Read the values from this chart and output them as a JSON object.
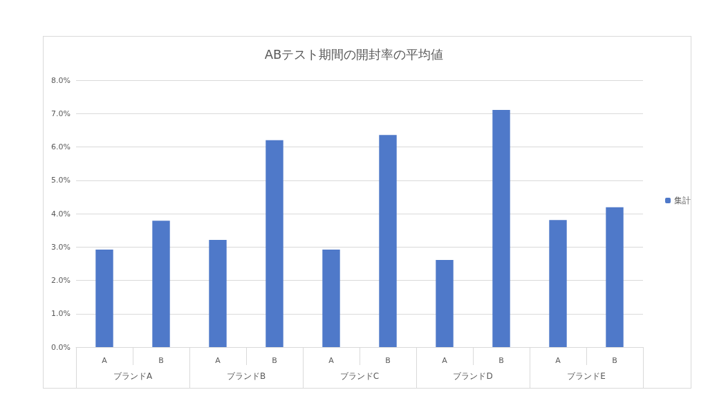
{
  "chart_data": {
    "type": "bar",
    "title": "ABテスト期間の開封率の平均値",
    "categories": [
      "A",
      "B",
      "A",
      "B",
      "A",
      "B",
      "A",
      "B",
      "A",
      "B"
    ],
    "annotations": [
      "ブランドA",
      "ブランドB",
      "ブランドC",
      "ブランドD",
      "ブランドE"
    ],
    "series": [
      {
        "name": "集計",
        "color": "#4f79c9",
        "values": [
          2.92,
          3.79,
          3.21,
          6.2,
          2.92,
          6.36,
          2.61,
          7.11,
          3.81,
          4.19
        ]
      }
    ],
    "ylim": [
      0,
      8
    ],
    "yticks": [
      {
        "value": 0,
        "label": "0.0%"
      },
      {
        "value": 1,
        "label": "1.0%"
      },
      {
        "value": 2,
        "label": "2.0%"
      },
      {
        "value": 3,
        "label": "3.0%"
      },
      {
        "value": 4,
        "label": "4.0%"
      },
      {
        "value": 5,
        "label": "5.0%"
      },
      {
        "value": 6,
        "label": "6.0%"
      },
      {
        "value": 7,
        "label": "7.0%"
      },
      {
        "value": 8,
        "label": "8.0%"
      }
    ],
    "grid": "y",
    "legend": "right"
  }
}
